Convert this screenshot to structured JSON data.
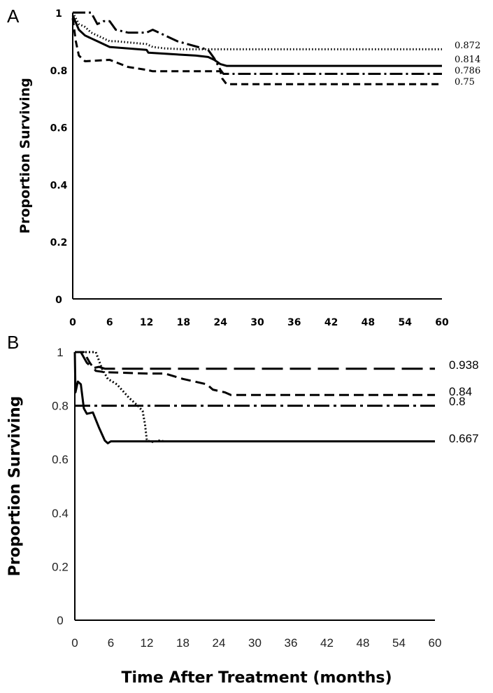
{
  "chart_data": [
    {
      "panel": "A",
      "type": "line",
      "ylabel": "Proportion Surviving",
      "xlim": [
        0,
        60
      ],
      "ylim": [
        0,
        1
      ],
      "x_ticks": [
        0,
        6,
        12,
        18,
        24,
        30,
        36,
        42,
        48,
        54,
        60
      ],
      "y_ticks": [
        0,
        0.2,
        0.4,
        0.6,
        0.8,
        1
      ],
      "y_tick_labels": [
        "0",
        "0.2",
        "0.4",
        "0.6",
        "0.8",
        "1"
      ],
      "series": [
        {
          "style": "dotted",
          "end_label": "0.872",
          "points": [
            [
              0,
              1.0
            ],
            [
              0.5,
              0.98
            ],
            [
              1,
              0.96
            ],
            [
              2,
              0.95
            ],
            [
              3,
              0.93
            ],
            [
              4,
              0.92
            ],
            [
              5,
              0.91
            ],
            [
              6,
              0.9
            ],
            [
              7,
              0.9
            ],
            [
              12,
              0.89
            ],
            [
              13,
              0.88
            ],
            [
              15,
              0.875
            ],
            [
              18,
              0.872
            ],
            [
              60,
              0.872
            ]
          ]
        },
        {
          "style": "solid",
          "end_label": "0.814",
          "points": [
            [
              0,
              0.99
            ],
            [
              1,
              0.94
            ],
            [
              2,
              0.92
            ],
            [
              3,
              0.91
            ],
            [
              4,
              0.9
            ],
            [
              6,
              0.88
            ],
            [
              12,
              0.87
            ],
            [
              12.3,
              0.86
            ],
            [
              16,
              0.855
            ],
            [
              20,
              0.85
            ],
            [
              22,
              0.845
            ],
            [
              23,
              0.835
            ],
            [
              24,
              0.82
            ],
            [
              25,
              0.814
            ],
            [
              60,
              0.814
            ]
          ]
        },
        {
          "style": "dash-dot",
          "end_label": "0.786",
          "points": [
            [
              0,
              1.0
            ],
            [
              3,
              1.0
            ],
            [
              4,
              0.96
            ],
            [
              5,
              0.97
            ],
            [
              6,
              0.97
            ],
            [
              7,
              0.94
            ],
            [
              9,
              0.93
            ],
            [
              12,
              0.93
            ],
            [
              13,
              0.94
            ],
            [
              17,
              0.9
            ],
            [
              22,
              0.87
            ],
            [
              23,
              0.84
            ],
            [
              24,
              0.8
            ],
            [
              24.5,
              0.786
            ],
            [
              60,
              0.786
            ]
          ]
        },
        {
          "style": "dashed",
          "end_label": "0.75",
          "points": [
            [
              0,
              0.98
            ],
            [
              0.5,
              0.9
            ],
            [
              1,
              0.85
            ],
            [
              2,
              0.83
            ],
            [
              6,
              0.835
            ],
            [
              9,
              0.81
            ],
            [
              12,
              0.8
            ],
            [
              13,
              0.795
            ],
            [
              24,
              0.795
            ],
            [
              24.3,
              0.77
            ],
            [
              25,
              0.75
            ],
            [
              60,
              0.75
            ]
          ]
        }
      ]
    },
    {
      "panel": "B",
      "type": "line",
      "ylabel": "Proportion Surviving",
      "xlabel": "Time After Treatment (months)",
      "xlim": [
        0,
        60
      ],
      "ylim": [
        0,
        1
      ],
      "x_ticks": [
        0,
        6,
        12,
        18,
        24,
        30,
        36,
        42,
        48,
        54,
        60
      ],
      "y_ticks": [
        0,
        0.2,
        0.4,
        0.6,
        0.8,
        1
      ],
      "y_tick_labels": [
        "0",
        "0.2",
        "0.4",
        "0.6",
        "0.8",
        "1"
      ],
      "series": [
        {
          "style": "long-dash",
          "end_label": "0.938",
          "points": [
            [
              0,
              1.0
            ],
            [
              1,
              1.0
            ],
            [
              2,
              0.96
            ],
            [
              3,
              0.94
            ],
            [
              4,
              0.945
            ],
            [
              5,
              0.938
            ],
            [
              60,
              0.938
            ]
          ]
        },
        {
          "style": "dashed",
          "end_label": "0.84",
          "points": [
            [
              0,
              1.0
            ],
            [
              1.5,
              1.0
            ],
            [
              2.5,
              0.96
            ],
            [
              3.5,
              0.93
            ],
            [
              5,
              0.925
            ],
            [
              12,
              0.92
            ],
            [
              15,
              0.92
            ],
            [
              18,
              0.9
            ],
            [
              22,
              0.88
            ],
            [
              23,
              0.86
            ],
            [
              25,
              0.85
            ],
            [
              26,
              0.84
            ],
            [
              60,
              0.84
            ]
          ]
        },
        {
          "style": "dash-dot",
          "end_label": "0.8",
          "points": [
            [
              0,
              0.8
            ],
            [
              60,
              0.8
            ]
          ]
        },
        {
          "style": "solid",
          "end_label": "0.667",
          "points": [
            [
              0,
              1.0
            ],
            [
              0.1,
              0.85
            ],
            [
              0.5,
              0.89
            ],
            [
              1,
              0.88
            ],
            [
              1.5,
              0.79
            ],
            [
              2,
              0.77
            ],
            [
              3,
              0.775
            ],
            [
              4,
              0.72
            ],
            [
              5,
              0.67
            ],
            [
              5.5,
              0.66
            ],
            [
              6,
              0.667
            ],
            [
              60,
              0.667
            ]
          ]
        },
        {
          "style": "dotted",
          "end_label": "",
          "points": [
            [
              0,
              1.0
            ],
            [
              3.5,
              1.0
            ],
            [
              4.5,
              0.94
            ],
            [
              5.5,
              0.9
            ],
            [
              7,
              0.88
            ],
            [
              9,
              0.83
            ],
            [
              10.5,
              0.8
            ],
            [
              11.3,
              0.78
            ],
            [
              11.7,
              0.73
            ],
            [
              12,
              0.67
            ],
            [
              13,
              0.665
            ],
            [
              14,
              0.67
            ],
            [
              15,
              0.667
            ]
          ]
        }
      ]
    }
  ]
}
